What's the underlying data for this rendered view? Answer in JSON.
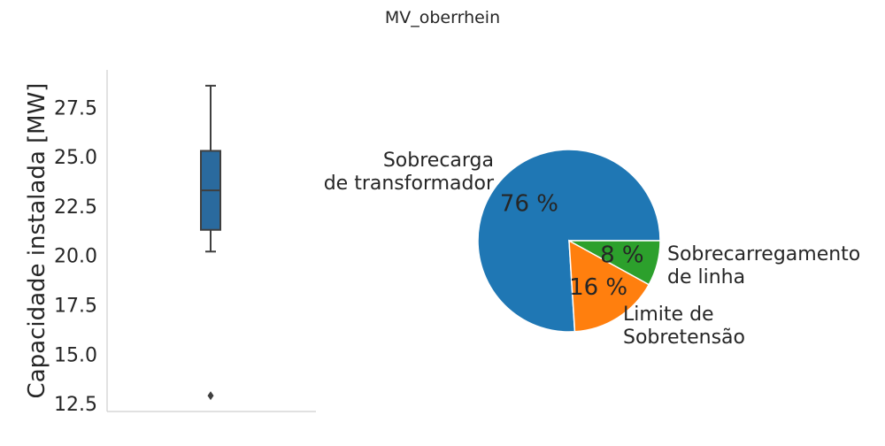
{
  "figure": {
    "suptitle": "MV_oberrhein"
  },
  "chart_data": [
    {
      "type": "box",
      "ylabel": "Capacidade instalada [MW]",
      "ylim": [
        12.1,
        29.4
      ],
      "yticks": [
        12.5,
        15.0,
        17.5,
        20.0,
        22.5,
        25.0,
        27.5
      ],
      "ytick_labels": [
        "12.5",
        "15.0",
        "17.5",
        "20.0",
        "22.5",
        "25.0",
        "27.5"
      ],
      "box": {
        "whisker_low": 20.2,
        "q1": 21.3,
        "median": 23.3,
        "q3": 25.3,
        "whisker_high": 28.6
      },
      "outliers": [
        12.9
      ],
      "colors": {
        "box": "#2a6a9e",
        "line": "#3f3f3f"
      }
    },
    {
      "type": "pie",
      "slices": [
        {
          "label": "Sobrecarga\nde transformador",
          "value": 76,
          "pct_label": "76 %",
          "color": "#1f77b4"
        },
        {
          "label": "Limite de\nSobretensão",
          "value": 16,
          "pct_label": "16 %",
          "color": "#ff7f0e"
        },
        {
          "label": "Sobrecarregamento\nde linha",
          "value": 8,
          "pct_label": "8 %",
          "color": "#2ca02c"
        }
      ]
    }
  ]
}
